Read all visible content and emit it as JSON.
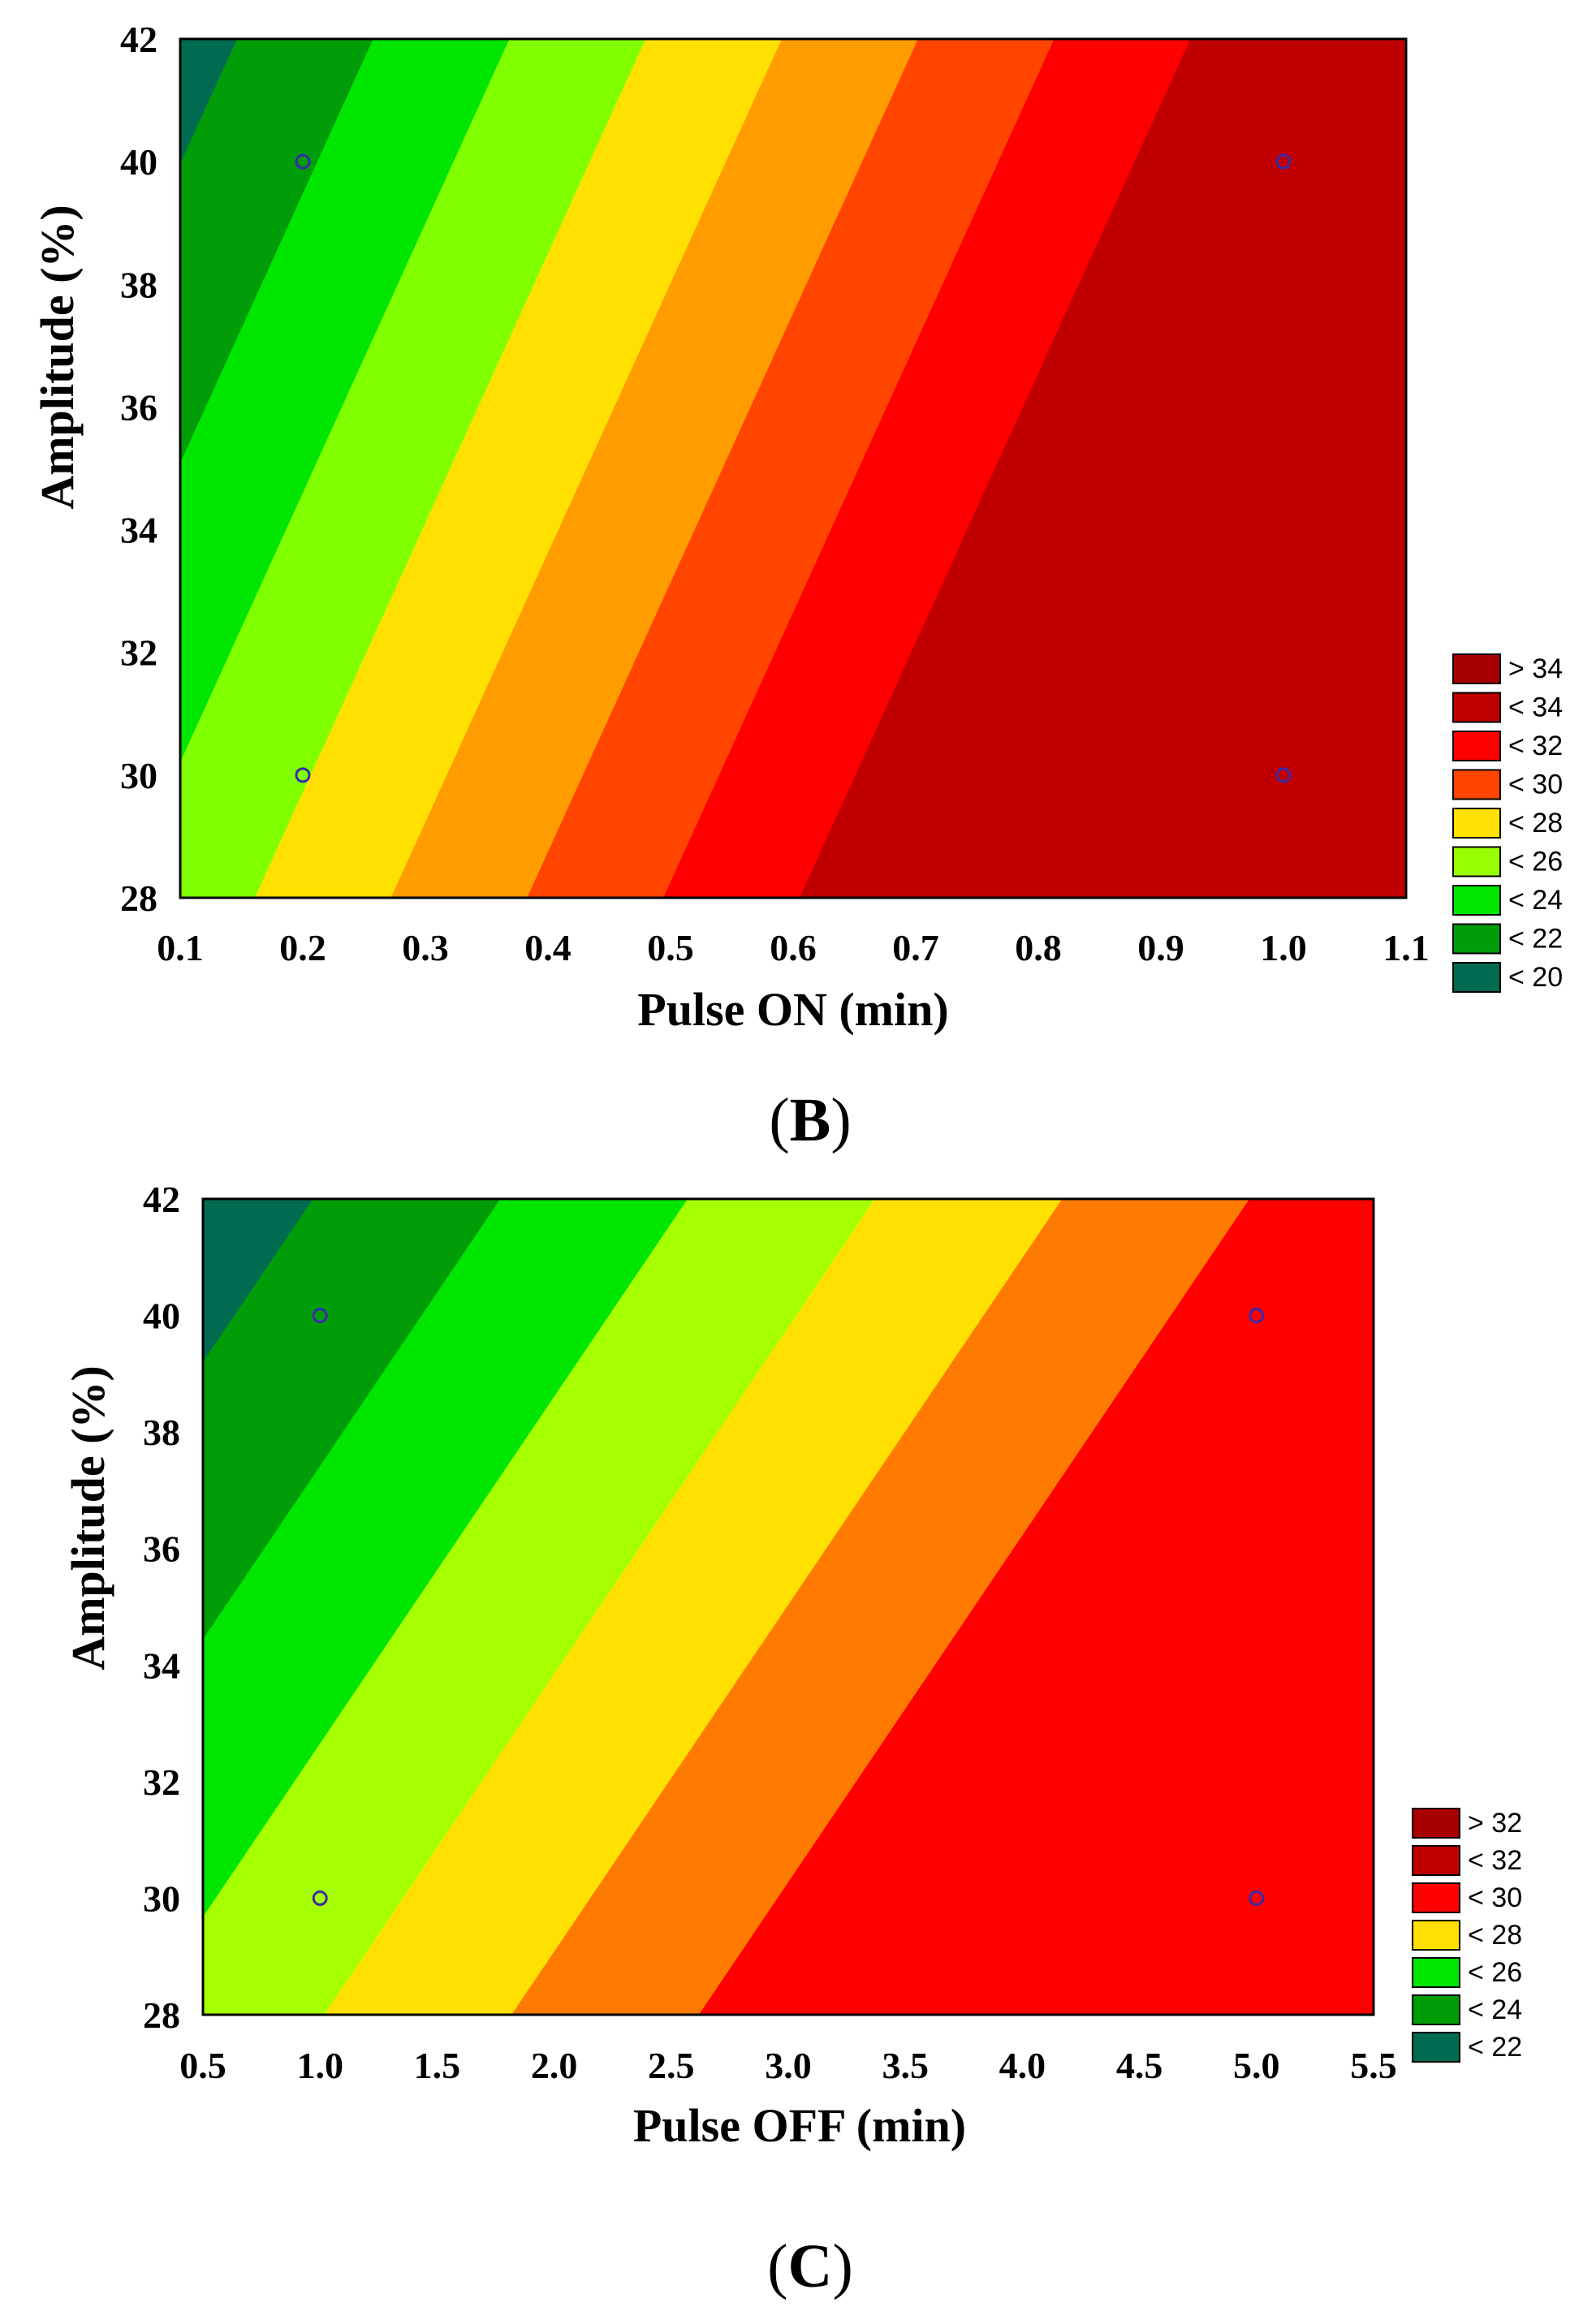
{
  "chart_data": [
    {
      "type": "contour",
      "panel": "B",
      "panel_parts": [
        "(",
        "B",
        ")"
      ],
      "xlabel": "Pulse ON (min)",
      "ylabel": "Amplitude (%)",
      "xlim": [
        0.1,
        1.1
      ],
      "ylim": [
        28,
        42
      ],
      "xticks": [
        0.1,
        0.2,
        0.3,
        0.4,
        0.5,
        0.6,
        0.7,
        0.8,
        0.9,
        1.0,
        1.1
      ],
      "xtick_labels": [
        "0.1",
        "0.2",
        "0.3",
        "0.4",
        "0.5",
        "0.6",
        "0.7",
        "0.8",
        "0.9",
        "1.0",
        "1.1"
      ],
      "yticks": [
        28,
        30,
        32,
        34,
        36,
        38,
        40,
        42
      ],
      "ytick_labels": [
        "28",
        "30",
        "32",
        "34",
        "36",
        "38",
        "40",
        "42"
      ],
      "model": {
        "intercept": 24.9,
        "x_coef": 18.0,
        "y_coef": -0.41,
        "y_ref": 28
      },
      "levels": [
        20,
        22,
        24,
        26,
        28,
        30,
        32,
        34
      ],
      "level_colors": [
        "#006b50",
        "#009d08",
        "#00e600",
        "#7fff00",
        "#ffe000",
        "#ff9c00",
        "#ff4500",
        "#ff0000",
        "#c00000"
      ],
      "legend": [
        {
          "label": "> 34",
          "color": "#a80000"
        },
        {
          "label": "< 34",
          "color": "#c00000"
        },
        {
          "label": "< 32",
          "color": "#ff0000"
        },
        {
          "label": "< 30",
          "color": "#ff4500"
        },
        {
          "label": "< 28",
          "color": "#ffe000"
        },
        {
          "label": "< 26",
          "color": "#99ff00"
        },
        {
          "label": "< 24",
          "color": "#00e600"
        },
        {
          "label": "< 22",
          "color": "#009d08"
        },
        {
          "label": "< 20",
          "color": "#006b50"
        }
      ],
      "points": [
        {
          "x": 0.2,
          "y": 40
        },
        {
          "x": 1.0,
          "y": 40
        },
        {
          "x": 0.2,
          "y": 30
        },
        {
          "x": 1.0,
          "y": 30
        }
      ]
    },
    {
      "type": "contour",
      "panel": "C",
      "panel_parts": [
        "(",
        "C",
        ")"
      ],
      "xlabel": "Pulse OFF (min)",
      "ylabel": "Amplitude (%)",
      "xlim": [
        0.5,
        5.5
      ],
      "ylim": [
        28,
        42
      ],
      "xticks": [
        0.5,
        1.0,
        1.5,
        2.0,
        2.5,
        3.0,
        3.5,
        4.0,
        4.5,
        5.0,
        5.5
      ],
      "xtick_labels": [
        "0.5",
        "1.0",
        "1.5",
        "2.0",
        "2.5",
        "3.0",
        "3.5",
        "4.0",
        "4.5",
        "5.0",
        "5.5"
      ],
      "yticks": [
        28,
        30,
        32,
        34,
        36,
        38,
        40,
        42
      ],
      "ytick_labels": [
        "28",
        "30",
        "32",
        "34",
        "36",
        "38",
        "40",
        "42"
      ],
      "model": {
        "intercept": 26.7,
        "x_coef": 2.5,
        "y_coef": -0.42,
        "y_ref": 28
      },
      "levels": [
        22,
        24,
        26,
        28,
        30,
        32
      ],
      "level_colors": [
        "#006b50",
        "#009d08",
        "#00e600",
        "#a6ff00",
        "#ffe000",
        "#ff7a00",
        "#ff0000"
      ],
      "legend": [
        {
          "label": "> 32",
          "color": "#a80000"
        },
        {
          "label": "< 32",
          "color": "#c00000"
        },
        {
          "label": "< 30",
          "color": "#ff0000"
        },
        {
          "label": "< 28",
          "color": "#ffe000"
        },
        {
          "label": "< 26",
          "color": "#00e600"
        },
        {
          "label": "< 24",
          "color": "#009d08"
        },
        {
          "label": "< 22",
          "color": "#006b50"
        }
      ],
      "points": [
        {
          "x": 1.0,
          "y": 40
        },
        {
          "x": 5.0,
          "y": 40
        },
        {
          "x": 1.0,
          "y": 30
        },
        {
          "x": 5.0,
          "y": 30
        }
      ]
    }
  ]
}
